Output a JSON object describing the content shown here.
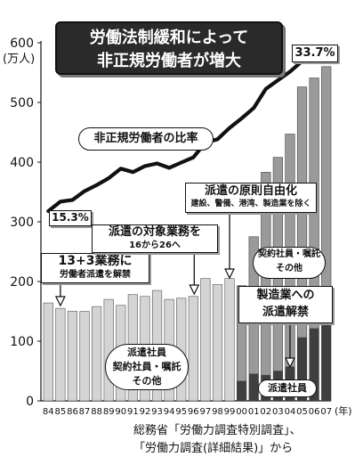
{
  "title": {
    "line1": "労働法制緩和によって",
    "line2": "非正規労働者が増大"
  },
  "y_unit": "(万人)",
  "x_unit": "(年)",
  "annotations": {
    "ratio_label": "非正規労働者の比率",
    "start_ratio": "15.3%",
    "end_ratio": "33.7%",
    "law1_title": "13+3業務に",
    "law1_sub": "労働者派遣を解禁",
    "law2_title": "派遣の対象業務を",
    "law2_sub": "16から26へ",
    "law3_title": "派遣の原則自由化",
    "law3_sub": "建設、警備、港湾、製造業を除く",
    "law4_line1": "製造業への",
    "law4_line2": "派遣解禁",
    "bar_label_a_line1": "派遣社員",
    "bar_label_a_line2": "契約社員・嘱託",
    "bar_label_a_line3": "その他",
    "bar_label_b_line1": "契約社員・嘱託",
    "bar_label_b_line2": "その他",
    "bar_label_c": "派遣社員"
  },
  "source": {
    "line1": "総務省「労働力調査特別調査」、",
    "line2": "「労働力調査(詳細結果)」から"
  },
  "chart_data": {
    "type": "bar",
    "categories": [
      "84",
      "85",
      "86",
      "87",
      "88",
      "89",
      "90",
      "91",
      "92",
      "93",
      "94",
      "95",
      "96",
      "97",
      "98",
      "99",
      "00",
      "01",
      "02",
      "03",
      "04",
      "05",
      "06",
      "07"
    ],
    "ylim": [
      0,
      600
    ],
    "yticks": [
      0,
      100,
      200,
      300,
      400,
      500,
      600
    ],
    "series": [
      {
        "name": "派遣社員",
        "values": [
          0,
          0,
          0,
          0,
          0,
          0,
          0,
          0,
          0,
          0,
          0,
          0,
          0,
          0,
          0,
          0,
          33,
          45,
          43,
          50,
          57,
          106,
          121,
          133
        ]
      },
      {
        "name": "契約社員・嘱託 その他",
        "values": [
          0,
          0,
          0,
          0,
          0,
          0,
          0,
          0,
          0,
          0,
          0,
          0,
          0,
          0,
          0,
          0,
          160,
          230,
          340,
          358,
          390,
          420,
          420,
          427
        ]
      },
      {
        "name": "派遣社員 契約社員・嘱託 その他",
        "values": [
          164,
          155,
          150,
          150,
          158,
          170,
          160,
          178,
          175,
          185,
          170,
          172,
          175,
          205,
          195,
          205,
          0,
          0,
          0,
          0,
          0,
          0,
          0,
          0
        ]
      }
    ],
    "line": {
      "name": "非正規労働者の比率",
      "values": [
        15.3,
        16.4,
        16.6,
        17.6,
        18.3,
        19.1,
        20.2,
        19.8,
        20.5,
        20.8,
        20.3,
        20.9,
        21.5,
        23.2,
        23.6,
        24.9,
        26.0,
        27.2,
        29.4,
        30.4,
        31.4,
        32.6,
        33.0,
        33.7
      ]
    },
    "colors": {
      "bar_light": "#d4d4d4",
      "bar_mid": "#9a9a9a",
      "bar_dark": "#3f3f3f",
      "line": "#111111"
    }
  }
}
